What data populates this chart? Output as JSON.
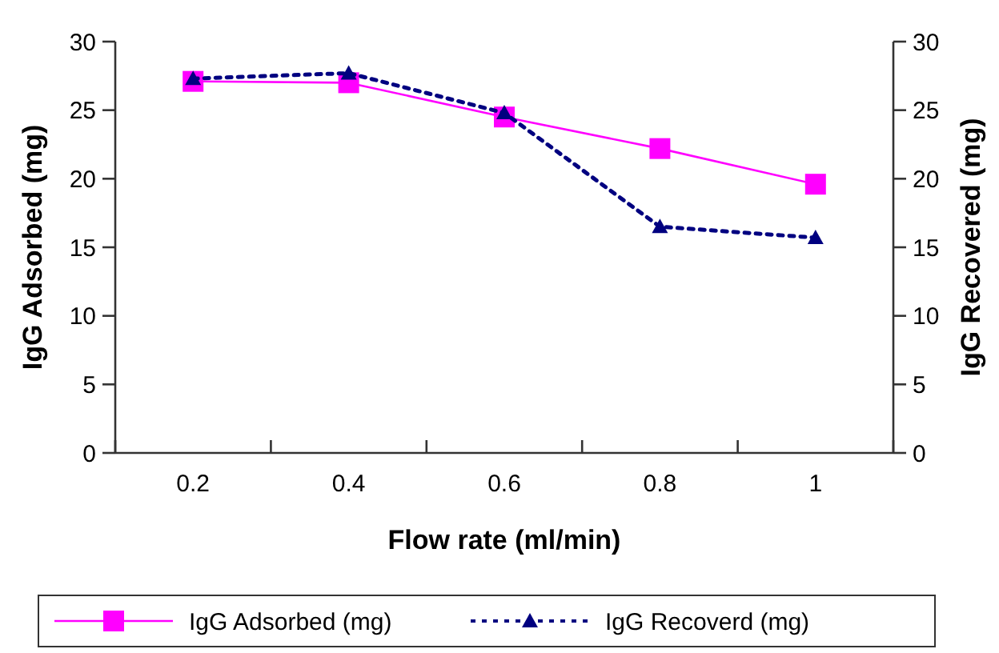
{
  "chart_data": {
    "type": "line",
    "xlabel": "Flow rate (ml/min)",
    "ylabel": "IgG Adsorbed (mg)",
    "y2label": "IgG Recovered (mg)",
    "categories": [
      "0.2",
      "0.4",
      "0.6",
      "0.8",
      "1"
    ],
    "series": [
      {
        "name": "IgG Adsorbed (mg)",
        "color": "#ff00ff",
        "values": [
          27.1,
          27.0,
          24.5,
          22.2,
          19.6
        ],
        "marker": "square",
        "line_style": "solid"
      },
      {
        "name": "IgG Recoverd (mg)",
        "color": "#000080",
        "values": [
          27.3,
          27.7,
          24.8,
          16.5,
          15.7
        ],
        "marker": "triangle",
        "line_style": "dotted",
        "axis": "y2"
      }
    ],
    "ylim": [
      0,
      30
    ],
    "yticks": [
      0,
      5,
      10,
      15,
      20,
      25,
      30
    ],
    "y2lim": [
      0,
      30
    ],
    "y2ticks": [
      0,
      5,
      10,
      15,
      20,
      25,
      30
    ],
    "grid": false,
    "legend": "bottom"
  }
}
